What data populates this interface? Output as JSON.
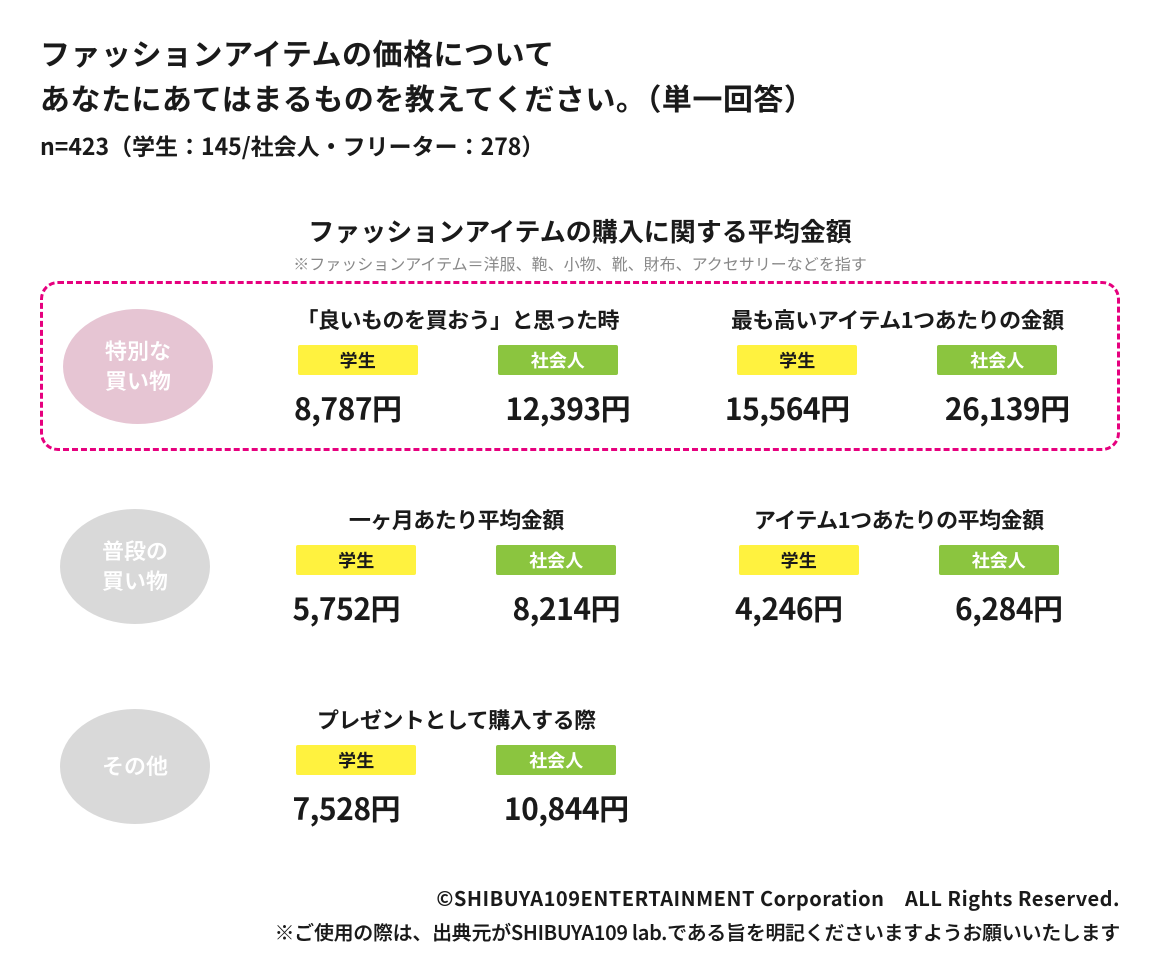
{
  "header": {
    "title_line1": "ファッションアイテムの価格について",
    "title_line2": "あなたにあてはまるものを教えてください。（単一回答）",
    "subtitle": "n=423（学生：145/社会人・フリーター：278）"
  },
  "section": {
    "title": "ファッションアイテムの購入に関する平均金額",
    "note": "※ファッションアイテム＝洋服、鞄、小物、靴、財布、アクセサリーなどを指す"
  },
  "styling": {
    "highlight_border_color": "#e6007e",
    "ellipse_special_color": "#e6c5d3",
    "ellipse_normal_color": "#d9d9d9",
    "tag_student_bg": "#fff23f",
    "tag_worker_bg": "#8bc53f",
    "tag_student_text": "#1a1a1a",
    "tag_worker_text": "#ffffff",
    "note_color": "#888888",
    "text_color": "#1a1a1a",
    "background_color": "#ffffff"
  },
  "labels": {
    "student": "学生",
    "worker": "社会人"
  },
  "rows": [
    {
      "id": "special",
      "label_line1": "特別な",
      "label_line2": "買い物",
      "highlighted": true,
      "ellipse_color_key": "ellipse_special_color",
      "columns": [
        {
          "title": "「良いものを買おう」と思った時",
          "student_value": "8,787円",
          "worker_value": "12,393円"
        },
        {
          "title": "最も高いアイテム1つあたりの金額",
          "student_value": "15,564円",
          "worker_value": "26,139円"
        }
      ]
    },
    {
      "id": "normal",
      "label_line1": "普段の",
      "label_line2": "買い物",
      "highlighted": false,
      "ellipse_color_key": "ellipse_normal_color",
      "columns": [
        {
          "title": "一ヶ月あたり平均金額",
          "student_value": "5,752円",
          "worker_value": "8,214円"
        },
        {
          "title": "アイテム1つあたりの平均金額",
          "student_value": "4,246円",
          "worker_value": "6,284円"
        }
      ]
    },
    {
      "id": "other",
      "label_line1": "その他",
      "label_line2": "",
      "highlighted": false,
      "ellipse_color_key": "ellipse_normal_color",
      "columns": [
        {
          "title": "プレゼントとして購入する際",
          "student_value": "7,528円",
          "worker_value": "10,844円"
        }
      ]
    }
  ],
  "footer": {
    "credit": "©SHIBUYA109ENTERTAINMENT Corporation　ALL Rights Reserved.",
    "usage": "※ご使用の際は、出典元がSHIBUYA109 lab.である旨を明記くださいますようお願いいたします"
  }
}
